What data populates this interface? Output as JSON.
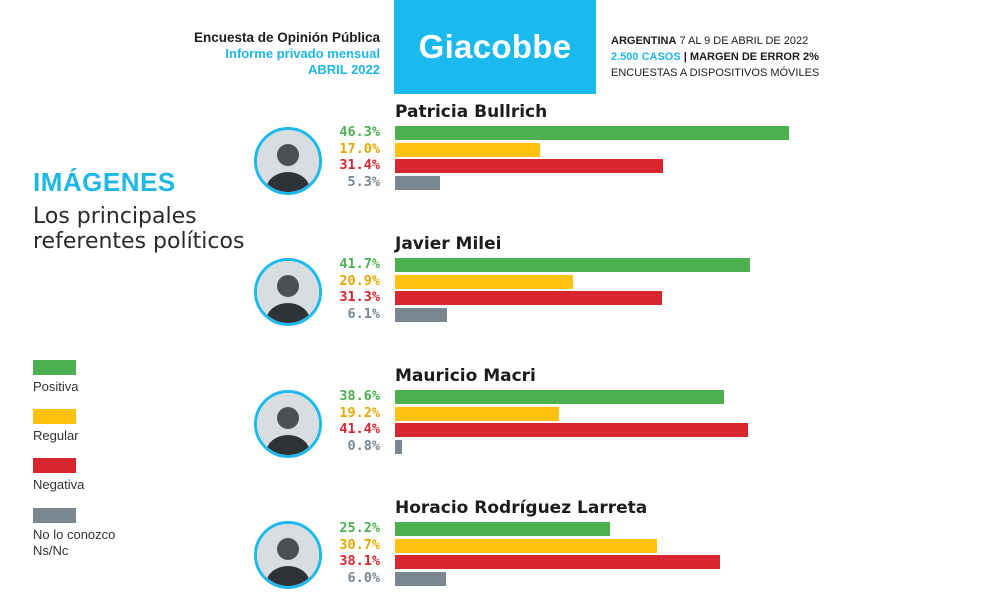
{
  "header": {
    "line1": "Encuesta de Opinión Pública",
    "line2": "Informe privado mensual",
    "line3": "ABRIL 2022",
    "brand": "Giacobbe",
    "country": "ARGENTINA",
    "dates": "7 AL 9 DE ABRIL DE 2022",
    "cases": "2.500 CASOS",
    "separator": "|",
    "margin": "MARGEN DE ERROR 2%",
    "method": "ENCUESTAS A DISPOSITIVOS MÓVILES"
  },
  "section": {
    "title": "IMÁGENES",
    "subtitle": "Los principales referentes políticos"
  },
  "legend": [
    {
      "label": "Positiva",
      "color": "#4caf50"
    },
    {
      "label": "Regular",
      "color": "#ffc20e"
    },
    {
      "label": "Negativa",
      "color": "#d7262d"
    },
    {
      "label": "No lo conozco\nNs/Nc",
      "color": "#7a8791"
    }
  ],
  "chart_data": {
    "type": "bar",
    "orientation": "horizontal",
    "series_names": [
      "Positiva",
      "Regular",
      "Negativa",
      "No lo conozco Ns/Nc"
    ],
    "colors": [
      "#4caf50",
      "#ffc20e",
      "#d7262d",
      "#7a8791"
    ],
    "value_colors": [
      "#4caf50",
      "#e6a800",
      "#d7262d",
      "#7a8791"
    ],
    "groups": [
      {
        "name": "Patricia Bullrich",
        "values": [
          46.3,
          17.0,
          31.4,
          5.3
        ],
        "labels": [
          "46.3%",
          "17.0%",
          "31.4%",
          "5.3%"
        ]
      },
      {
        "name": "Javier Milei",
        "values": [
          41.7,
          20.9,
          31.3,
          6.1
        ],
        "labels": [
          "41.7%",
          "20.9%",
          "31.3%",
          "6.1%"
        ]
      },
      {
        "name": "Mauricio Macri",
        "values": [
          38.6,
          19.2,
          41.4,
          0.8
        ],
        "labels": [
          "38.6%",
          "19.2%",
          "41.4%",
          "0.8%"
        ]
      },
      {
        "name": "Horacio Rodríguez Larreta",
        "values": [
          25.2,
          30.7,
          38.1,
          6.0
        ],
        "labels": [
          "25.2%",
          "30.7%",
          "38.1%",
          "6.0%"
        ]
      }
    ],
    "xlim": [
      0,
      50
    ]
  }
}
